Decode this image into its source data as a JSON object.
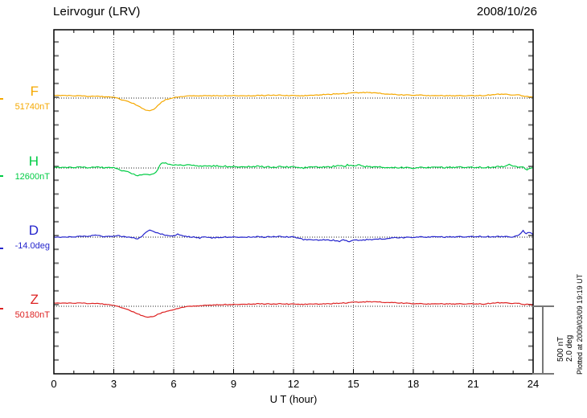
{
  "header": {
    "title": "Leirvogur (LRV)",
    "date": "2008/10/26"
  },
  "x_axis": {
    "label": "U T (hour)",
    "tick_labels": [
      "0",
      "3",
      "6",
      "9",
      "12",
      "15",
      "18",
      "21",
      "24"
    ],
    "tick_hours": [
      0,
      3,
      6,
      9,
      12,
      15,
      18,
      21,
      24
    ],
    "minor_step_hours": 1,
    "range_hours": [
      0,
      24
    ]
  },
  "scale_bar": {
    "nt_label": "500 nT",
    "deg_label": "2.0 deg"
  },
  "plotted_note": "Plotted at 2009/03/09 19:19 UT",
  "channels": [
    {
      "id": "F",
      "letter": "F",
      "value_label": "51740nT",
      "color": "#F5A800"
    },
    {
      "id": "H",
      "letter": "H",
      "value_label": "12600nT",
      "color": "#00CC44"
    },
    {
      "id": "D",
      "letter": "D",
      "value_label": "-14.0deg",
      "color": "#2525CD"
    },
    {
      "id": "Z",
      "letter": "Z",
      "value_label": "50180nT",
      "color": "#DD2222"
    }
  ],
  "chart_data": {
    "type": "line",
    "title": "Leirvogur (LRV) magnetogram 2008/10/26",
    "xlabel": "U T (hour)",
    "xlim": [
      0,
      24
    ],
    "grid": "dotted vertical gridlines every 3 hours; dotted horizontal reference line per channel",
    "legend_position": "left margin, one colored label per channel",
    "scale_reference": {
      "nT": 500,
      "deg": 2.0
    },
    "series": [
      {
        "name": "F",
        "unit": "nT",
        "reference_value": 51740,
        "points_hour_offset": [
          [
            0,
            20
          ],
          [
            0.5,
            19
          ],
          [
            1,
            17
          ],
          [
            1.5,
            14
          ],
          [
            2,
            13
          ],
          [
            2.5,
            10
          ],
          [
            3,
            6
          ],
          [
            3.2,
            0
          ],
          [
            3.4,
            -12
          ],
          [
            3.6,
            -20
          ],
          [
            3.8,
            -30
          ],
          [
            4,
            -40
          ],
          [
            4.2,
            -55
          ],
          [
            4.4,
            -72
          ],
          [
            4.6,
            -87
          ],
          [
            4.8,
            -93
          ],
          [
            5,
            -80
          ],
          [
            5.2,
            -55
          ],
          [
            5.4,
            -30
          ],
          [
            5.6,
            -12
          ],
          [
            5.8,
            -3
          ],
          [
            6,
            5
          ],
          [
            6.5,
            12
          ],
          [
            7,
            15
          ],
          [
            7.5,
            17
          ],
          [
            8,
            17
          ],
          [
            8.5,
            17
          ],
          [
            9,
            19
          ],
          [
            9.5,
            17
          ],
          [
            10,
            17
          ],
          [
            10.5,
            19
          ],
          [
            11,
            22
          ],
          [
            11.5,
            19
          ],
          [
            12,
            17
          ],
          [
            12.5,
            17
          ],
          [
            13,
            19
          ],
          [
            13.5,
            25
          ],
          [
            14,
            29
          ],
          [
            14.5,
            32
          ],
          [
            15,
            38
          ],
          [
            15.5,
            41
          ],
          [
            16,
            38
          ],
          [
            16.5,
            32
          ],
          [
            17,
            26
          ],
          [
            17.5,
            23
          ],
          [
            18,
            22
          ],
          [
            18.5,
            20
          ],
          [
            19,
            17
          ],
          [
            19.5,
            17
          ],
          [
            20,
            17
          ],
          [
            20.5,
            17
          ],
          [
            21,
            17
          ],
          [
            21.5,
            19
          ],
          [
            22,
            25
          ],
          [
            22.5,
            29
          ],
          [
            23,
            22
          ],
          [
            23.2,
            26
          ],
          [
            23.5,
            14
          ],
          [
            23.8,
            9
          ],
          [
            24,
            5
          ]
        ]
      },
      {
        "name": "H",
        "unit": "nT",
        "reference_value": 12600,
        "points_hour_offset": [
          [
            0,
            6
          ],
          [
            0.5,
            4
          ],
          [
            1,
            5
          ],
          [
            1.5,
            4
          ],
          [
            2,
            5
          ],
          [
            2.5,
            3
          ],
          [
            3,
            2
          ],
          [
            3.2,
            -6
          ],
          [
            3.4,
            -17
          ],
          [
            3.6,
            -25
          ],
          [
            3.8,
            -33
          ],
          [
            4,
            -45
          ],
          [
            4.2,
            -55
          ],
          [
            4.4,
            -48
          ],
          [
            4.6,
            -44
          ],
          [
            4.8,
            -52
          ],
          [
            5,
            -38
          ],
          [
            5.2,
            -15
          ],
          [
            5.3,
            20
          ],
          [
            5.45,
            38
          ],
          [
            5.6,
            34
          ],
          [
            5.8,
            30
          ],
          [
            6,
            25
          ],
          [
            6.5,
            20
          ],
          [
            7,
            17
          ],
          [
            7.5,
            13
          ],
          [
            8,
            15
          ],
          [
            8.5,
            12
          ],
          [
            9,
            12
          ],
          [
            9.5,
            9
          ],
          [
            10,
            12
          ],
          [
            10.5,
            9
          ],
          [
            11,
            7
          ],
          [
            11.5,
            9
          ],
          [
            12,
            6
          ],
          [
            12.5,
            1
          ],
          [
            13,
            6
          ],
          [
            13.5,
            6
          ],
          [
            14,
            12
          ],
          [
            14.3,
            20
          ],
          [
            14.5,
            7
          ],
          [
            14.7,
            23
          ],
          [
            15,
            12
          ],
          [
            15.3,
            28
          ],
          [
            15.5,
            12
          ],
          [
            16,
            7
          ],
          [
            16.5,
            6
          ],
          [
            17,
            1
          ],
          [
            17.5,
            4
          ],
          [
            18,
            1
          ],
          [
            18.5,
            3
          ],
          [
            19,
            6
          ],
          [
            19.5,
            3
          ],
          [
            20,
            6
          ],
          [
            20.5,
            6
          ],
          [
            21,
            3
          ],
          [
            21.5,
            6
          ],
          [
            22,
            6
          ],
          [
            22.5,
            12
          ],
          [
            22.8,
            23
          ],
          [
            23,
            12
          ],
          [
            23.5,
            6
          ],
          [
            23.7,
            -12
          ],
          [
            24,
            1
          ]
        ]
      },
      {
        "name": "D",
        "unit": "deg",
        "reference_value": -14.0,
        "points_hour_offset": [
          [
            0,
            0
          ],
          [
            0.5,
            0
          ],
          [
            1,
            0.01
          ],
          [
            1.5,
            0.02
          ],
          [
            2,
            0.05
          ],
          [
            2.3,
            0.05
          ],
          [
            2.5,
            0.02
          ],
          [
            3,
            0.02
          ],
          [
            3.2,
            0.05
          ],
          [
            3.5,
            0.02
          ],
          [
            3.8,
            0
          ],
          [
            4,
            -0.02
          ],
          [
            4.2,
            -0.05
          ],
          [
            4.4,
            0.02
          ],
          [
            4.6,
            0.14
          ],
          [
            4.8,
            0.2
          ],
          [
            5,
            0.17
          ],
          [
            5.2,
            0.12
          ],
          [
            5.5,
            0.07
          ],
          [
            5.8,
            0.05
          ],
          [
            6,
            0.05
          ],
          [
            6.2,
            0.08
          ],
          [
            6.4,
            0.05
          ],
          [
            6.6,
            0.02
          ],
          [
            7,
            0
          ],
          [
            7.3,
            -0.02
          ],
          [
            7.5,
            0
          ],
          [
            8,
            -0.02
          ],
          [
            8.5,
            0
          ],
          [
            9,
            0.01
          ],
          [
            9.5,
            0
          ],
          [
            10,
            0.01
          ],
          [
            10.5,
            0
          ],
          [
            11,
            0.02
          ],
          [
            11.5,
            0.01
          ],
          [
            12,
            0
          ],
          [
            12.3,
            -0.03
          ],
          [
            12.5,
            -0.07
          ],
          [
            13,
            -0.09
          ],
          [
            13.5,
            -0.08
          ],
          [
            14,
            -0.09
          ],
          [
            14.3,
            -0.12
          ],
          [
            14.5,
            -0.09
          ],
          [
            14.8,
            -0.12
          ],
          [
            15,
            -0.09
          ],
          [
            15.5,
            -0.08
          ],
          [
            16,
            -0.07
          ],
          [
            16.5,
            -0.05
          ],
          [
            17,
            -0.02
          ],
          [
            17.5,
            -0.01
          ],
          [
            18,
            0
          ],
          [
            18.5,
            0
          ],
          [
            19,
            0.01
          ],
          [
            19.5,
            0
          ],
          [
            20,
            0.01
          ],
          [
            20.5,
            0.01
          ],
          [
            21,
            0.01
          ],
          [
            21.5,
            0.02
          ],
          [
            22,
            0.01
          ],
          [
            22.5,
            0.02
          ],
          [
            23,
            0
          ],
          [
            23.3,
            0.07
          ],
          [
            23.5,
            0.19
          ],
          [
            23.65,
            0.09
          ],
          [
            23.8,
            0.14
          ],
          [
            24,
            0.07
          ]
        ]
      },
      {
        "name": "Z",
        "unit": "nT",
        "reference_value": 50180,
        "points_hour_offset": [
          [
            0,
            23
          ],
          [
            0.5,
            23
          ],
          [
            1,
            23
          ],
          [
            1.5,
            22
          ],
          [
            2,
            20
          ],
          [
            2.5,
            16
          ],
          [
            3,
            6
          ],
          [
            3.2,
            0
          ],
          [
            3.4,
            -9
          ],
          [
            3.6,
            -20
          ],
          [
            3.8,
            -30
          ],
          [
            4,
            -42
          ],
          [
            4.2,
            -55
          ],
          [
            4.5,
            -72
          ],
          [
            4.7,
            -80
          ],
          [
            5,
            -72
          ],
          [
            5.2,
            -58
          ],
          [
            5.5,
            -42
          ],
          [
            5.8,
            -29
          ],
          [
            6,
            -23
          ],
          [
            6.3,
            -12
          ],
          [
            6.5,
            -6
          ],
          [
            7,
            0
          ],
          [
            7.5,
            6
          ],
          [
            8,
            9
          ],
          [
            8.5,
            12
          ],
          [
            9,
            14
          ],
          [
            9.5,
            15
          ],
          [
            10,
            17
          ],
          [
            10.5,
            17
          ],
          [
            11,
            17
          ],
          [
            11.5,
            17
          ],
          [
            12,
            15
          ],
          [
            12.5,
            14
          ],
          [
            13,
            15
          ],
          [
            13.5,
            17
          ],
          [
            14,
            20
          ],
          [
            14.5,
            23
          ],
          [
            15,
            29
          ],
          [
            15.5,
            32
          ],
          [
            16,
            32
          ],
          [
            16.5,
            29
          ],
          [
            17,
            26
          ],
          [
            17.5,
            23
          ],
          [
            18,
            20
          ],
          [
            18.5,
            17
          ],
          [
            19,
            17
          ],
          [
            19.5,
            17
          ],
          [
            20,
            17
          ],
          [
            20.5,
            17
          ],
          [
            21,
            17
          ],
          [
            21.5,
            17
          ],
          [
            22,
            23
          ],
          [
            22.5,
            26
          ],
          [
            23,
            20
          ],
          [
            23.3,
            23
          ],
          [
            23.5,
            12
          ],
          [
            23.8,
            14
          ],
          [
            24,
            5
          ]
        ]
      }
    ]
  }
}
